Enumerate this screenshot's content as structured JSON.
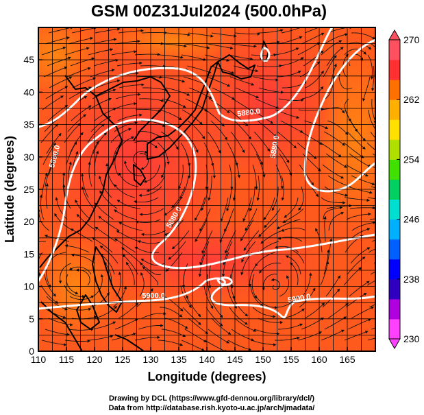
{
  "title": "GSM 00Z31Jul2024 (500.0hPa)",
  "map": {
    "xlabel": "Longitude (degrees)",
    "ylabel": "Latitude  (degrees)",
    "xlim": [
      110,
      170
    ],
    "ylim": [
      0,
      50
    ],
    "x_ticks": [
      "110",
      "115",
      "120",
      "125",
      "130",
      "135",
      "140",
      "145",
      "150",
      "155",
      "160",
      "165"
    ],
    "y_ticks": [
      "0",
      "5",
      "10",
      "15",
      "20",
      "25",
      "30",
      "35",
      "40",
      "45"
    ],
    "grid_step_deg": 2.5,
    "field": "temperature (K)",
    "contour_labels": [
      {
        "text": "5880.0",
        "lon": 147.5,
        "lat": 36.5,
        "rot": -8
      },
      {
        "text": "5880.0",
        "lon": 113.3,
        "lat": 30,
        "rot": -75
      },
      {
        "text": "5880.0",
        "lon": 152.5,
        "lat": 31.5,
        "rot": -80
      },
      {
        "text": "5880.0",
        "lon": 134.5,
        "lat": 20.5,
        "rot": -60
      },
      {
        "text": "5900.0",
        "lon": 130.5,
        "lat": 8.2,
        "rot": 0
      },
      {
        "text": "5900.0",
        "lon": 156.5,
        "lat": 7.8,
        "rot": -10
      }
    ]
  },
  "colorbar": {
    "min": 230,
    "max": 270,
    "ticks": [
      "270",
      "262",
      "254",
      "246",
      "238",
      "230"
    ],
    "colors": [
      "#ff40ff",
      "#b000e0",
      "#3000c0",
      "#0000ff",
      "#0060ff",
      "#00b0ff",
      "#00e0d0",
      "#00d060",
      "#40e000",
      "#b0e000",
      "#ffe000",
      "#ffb000",
      "#ff7000",
      "#ff3030",
      "#ff5060"
    ]
  },
  "credits": {
    "line1": "Drawing by DCL (https://www.gfd-dennou.org/library/dcl/)",
    "line2": "Data from http://database.rish.kyoto-u.ac.jp/arch/jmadata/"
  }
}
